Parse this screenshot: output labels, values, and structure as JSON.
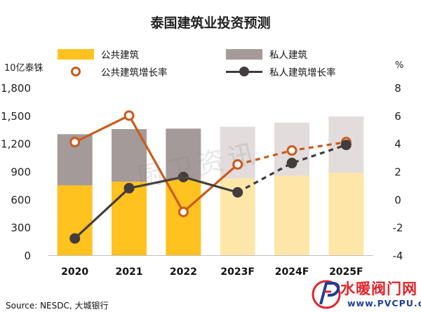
{
  "chart_data": {
    "type": "bar",
    "title": "泰国建筑业投资预测",
    "left_axis_unit": "10亿泰铢",
    "right_axis_unit": "%",
    "categories": [
      "2020",
      "2021",
      "2022",
      "2023F",
      "2024F",
      "2025F"
    ],
    "y_left": {
      "min": 0,
      "max": 1800,
      "ticks": [
        0,
        300,
        600,
        900,
        1200,
        1500,
        1800
      ],
      "tick_labels": [
        "0",
        "300",
        "600",
        "900",
        "1,200",
        "1,500",
        "1,800"
      ]
    },
    "y_right": {
      "min": -4,
      "max": 8,
      "ticks": [
        -4,
        -2,
        0,
        2,
        4,
        6,
        8
      ],
      "tick_labels": [
        "-4",
        "-2",
        "0",
        "2",
        "4",
        "6",
        "8"
      ]
    },
    "series": [
      {
        "name": "公共建筑",
        "kind": "bar-stack",
        "axis": "left",
        "color": "#ffc21f",
        "forecast_color": "#fde7a8",
        "values": [
          750,
          790,
          810,
          825,
          855,
          885
        ]
      },
      {
        "name": "私人建筑",
        "kind": "bar-stack",
        "axis": "left",
        "color": "#a59a9a",
        "forecast_color": "#e2dcdc",
        "values": [
          550,
          565,
          550,
          555,
          570,
          605
        ]
      },
      {
        "name": "公共建筑增长率",
        "kind": "line",
        "axis": "right",
        "color": "#cc5a1b",
        "values": [
          4.1,
          6.0,
          -0.9,
          2.5,
          3.5,
          4.1
        ]
      },
      {
        "name": "私人建筑增长率",
        "kind": "line",
        "axis": "right",
        "color": "#423c3c",
        "values": [
          -2.8,
          0.8,
          1.6,
          0.5,
          2.6,
          3.9
        ]
      }
    ],
    "forecast_from_index": 3,
    "legend_position": "top",
    "grid": false
  },
  "source": "Source: NESDC, 大城银行",
  "watermark": "厨卫资讯",
  "logo": {
    "name": "水暖阀门网",
    "url": "www.PVCPU.com"
  }
}
